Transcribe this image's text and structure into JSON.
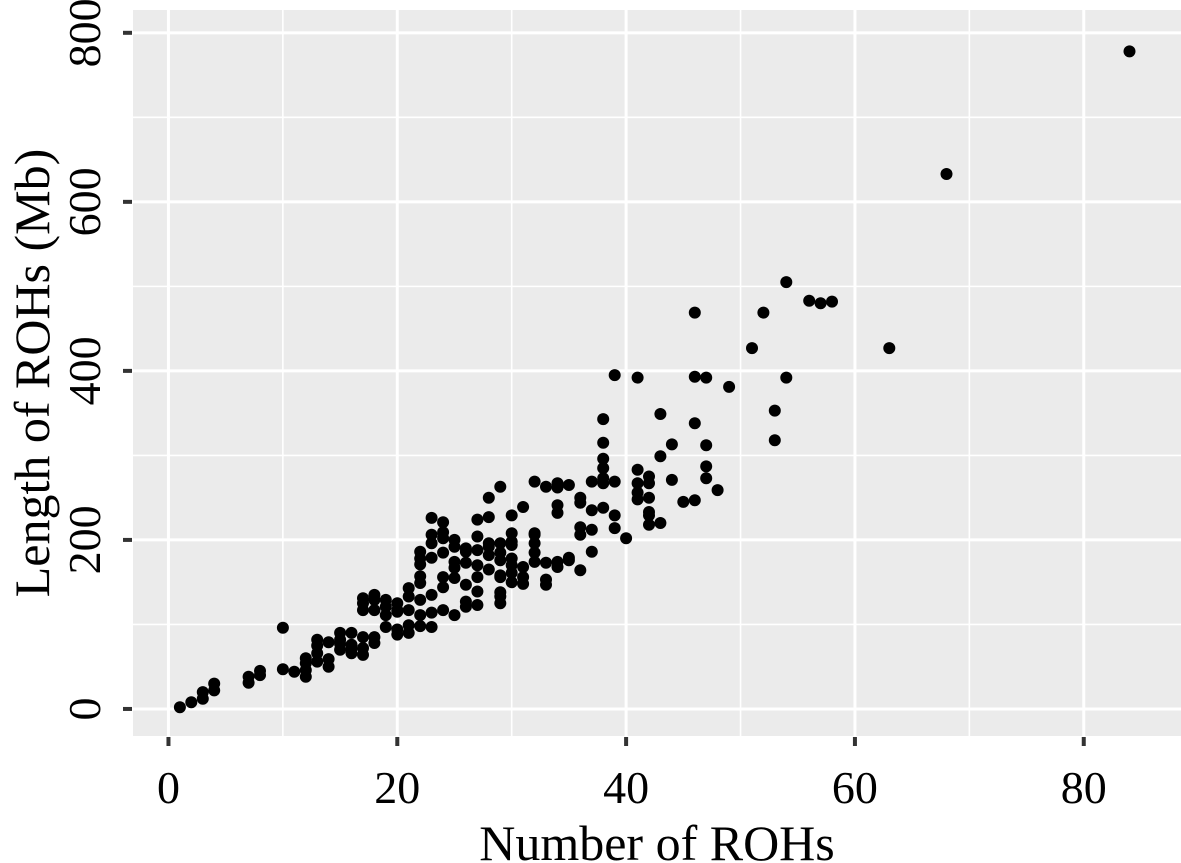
{
  "figure": {
    "background": "#ffffff"
  },
  "chart_data": {
    "type": "scatter",
    "title": "",
    "xlabel": "Number of ROHs",
    "ylabel": "Length of ROHs (Mb)",
    "x_ticks": [
      0,
      20,
      40,
      60,
      80
    ],
    "y_ticks": [
      0,
      200,
      400,
      600,
      800
    ],
    "x_minor_ticks": [
      10,
      30,
      50,
      70
    ],
    "y_minor_ticks": [
      100,
      300,
      500,
      700
    ],
    "xlim": [
      -3.1,
      88.5
    ],
    "ylim": [
      -32,
      827
    ],
    "grid": true,
    "legend_position": "none",
    "panel_background": "#EBEBEB",
    "grid_color": "#FFFFFF",
    "point_color": "#000000",
    "tick_color": "#333333",
    "text_color": "#000000",
    "points": [
      [
        1,
        2
      ],
      [
        2,
        8
      ],
      [
        3,
        12
      ],
      [
        3,
        20
      ],
      [
        4,
        22
      ],
      [
        4,
        30
      ],
      [
        7,
        31
      ],
      [
        7,
        38
      ],
      [
        8,
        40
      ],
      [
        8,
        45
      ],
      [
        10,
        47
      ],
      [
        10,
        96
      ],
      [
        11,
        44
      ],
      [
        12,
        38
      ],
      [
        12,
        46
      ],
      [
        12,
        54
      ],
      [
        12,
        60
      ],
      [
        13,
        56
      ],
      [
        13,
        66
      ],
      [
        13,
        75
      ],
      [
        13,
        82
      ],
      [
        14,
        50
      ],
      [
        14,
        59
      ],
      [
        14,
        79
      ],
      [
        15,
        70
      ],
      [
        15,
        77
      ],
      [
        15,
        82
      ],
      [
        15,
        90
      ],
      [
        16,
        66
      ],
      [
        16,
        71
      ],
      [
        16,
        76
      ],
      [
        16,
        90
      ],
      [
        17,
        64
      ],
      [
        17,
        72
      ],
      [
        17,
        85
      ],
      [
        17,
        117
      ],
      [
        17,
        125
      ],
      [
        17,
        131
      ],
      [
        18,
        78
      ],
      [
        18,
        85
      ],
      [
        18,
        117
      ],
      [
        18,
        129
      ],
      [
        18,
        135
      ],
      [
        19,
        97
      ],
      [
        19,
        111
      ],
      [
        19,
        121
      ],
      [
        19,
        129
      ],
      [
        20,
        88
      ],
      [
        20,
        94
      ],
      [
        20,
        115
      ],
      [
        20,
        117
      ],
      [
        20,
        125
      ],
      [
        21,
        90
      ],
      [
        21,
        99
      ],
      [
        21,
        117
      ],
      [
        21,
        133
      ],
      [
        21,
        143
      ],
      [
        22,
        98
      ],
      [
        22,
        111
      ],
      [
        22,
        129
      ],
      [
        22,
        149
      ],
      [
        22,
        157
      ],
      [
        22,
        171
      ],
      [
        22,
        178
      ],
      [
        22,
        186
      ],
      [
        23,
        97
      ],
      [
        23,
        114
      ],
      [
        23,
        135
      ],
      [
        23,
        179
      ],
      [
        23,
        196
      ],
      [
        23,
        206
      ],
      [
        23,
        226
      ],
      [
        24,
        117
      ],
      [
        24,
        144
      ],
      [
        24,
        156
      ],
      [
        24,
        185
      ],
      [
        24,
        202
      ],
      [
        24,
        209
      ],
      [
        24,
        221
      ],
      [
        25,
        111
      ],
      [
        25,
        155
      ],
      [
        25,
        167
      ],
      [
        25,
        174
      ],
      [
        25,
        192
      ],
      [
        25,
        200
      ],
      [
        26,
        121
      ],
      [
        26,
        127
      ],
      [
        26,
        147
      ],
      [
        26,
        173
      ],
      [
        26,
        186
      ],
      [
        26,
        190
      ],
      [
        27,
        123
      ],
      [
        27,
        139
      ],
      [
        27,
        156
      ],
      [
        27,
        170
      ],
      [
        27,
        188
      ],
      [
        27,
        204
      ],
      [
        27,
        224
      ],
      [
        28,
        165
      ],
      [
        28,
        182
      ],
      [
        28,
        192
      ],
      [
        28,
        196
      ],
      [
        28,
        227
      ],
      [
        28,
        250
      ],
      [
        29,
        125
      ],
      [
        29,
        133
      ],
      [
        29,
        138
      ],
      [
        29,
        156
      ],
      [
        29,
        158
      ],
      [
        29,
        176
      ],
      [
        29,
        185
      ],
      [
        29,
        196
      ],
      [
        29,
        263
      ],
      [
        30,
        150
      ],
      [
        30,
        161
      ],
      [
        30,
        170
      ],
      [
        30,
        178
      ],
      [
        30,
        194
      ],
      [
        30,
        198
      ],
      [
        30,
        208
      ],
      [
        30,
        229
      ],
      [
        31,
        148
      ],
      [
        31,
        156
      ],
      [
        31,
        168
      ],
      [
        31,
        239
      ],
      [
        32,
        174
      ],
      [
        32,
        185
      ],
      [
        32,
        196
      ],
      [
        32,
        206
      ],
      [
        32,
        208
      ],
      [
        32,
        269
      ],
      [
        33,
        147
      ],
      [
        33,
        153
      ],
      [
        33,
        173
      ],
      [
        33,
        263
      ],
      [
        34,
        168
      ],
      [
        34,
        174
      ],
      [
        34,
        232
      ],
      [
        34,
        241
      ],
      [
        34,
        262
      ],
      [
        34,
        267
      ],
      [
        35,
        176
      ],
      [
        35,
        179
      ],
      [
        35,
        265
      ],
      [
        36,
        164
      ],
      [
        36,
        206
      ],
      [
        36,
        215
      ],
      [
        36,
        244
      ],
      [
        36,
        250
      ],
      [
        37,
        186
      ],
      [
        37,
        212
      ],
      [
        37,
        235
      ],
      [
        37,
        269
      ],
      [
        38,
        238
      ],
      [
        38,
        267
      ],
      [
        38,
        273
      ],
      [
        38,
        285
      ],
      [
        38,
        296
      ],
      [
        38,
        315
      ],
      [
        38,
        343
      ],
      [
        39,
        214
      ],
      [
        39,
        229
      ],
      [
        39,
        269
      ],
      [
        39,
        395
      ],
      [
        40,
        202
      ],
      [
        41,
        248
      ],
      [
        41,
        256
      ],
      [
        41,
        267
      ],
      [
        41,
        283
      ],
      [
        41,
        392
      ],
      [
        42,
        218
      ],
      [
        42,
        229
      ],
      [
        42,
        233
      ],
      [
        42,
        250
      ],
      [
        42,
        267
      ],
      [
        42,
        275
      ],
      [
        43,
        220
      ],
      [
        43,
        299
      ],
      [
        43,
        349
      ],
      [
        44,
        271
      ],
      [
        44,
        313
      ],
      [
        45,
        245
      ],
      [
        46,
        247
      ],
      [
        46,
        338
      ],
      [
        46,
        393
      ],
      [
        46,
        469
      ],
      [
        47,
        273
      ],
      [
        47,
        287
      ],
      [
        47,
        312
      ],
      [
        47,
        392
      ],
      [
        48,
        259
      ],
      [
        49,
        381
      ],
      [
        51,
        427
      ],
      [
        52,
        469
      ],
      [
        53,
        318
      ],
      [
        53,
        353
      ],
      [
        54,
        392
      ],
      [
        54,
        505
      ],
      [
        56,
        483
      ],
      [
        57,
        480
      ],
      [
        58,
        482
      ],
      [
        63,
        427
      ],
      [
        68,
        633
      ],
      [
        84,
        778
      ]
    ]
  }
}
